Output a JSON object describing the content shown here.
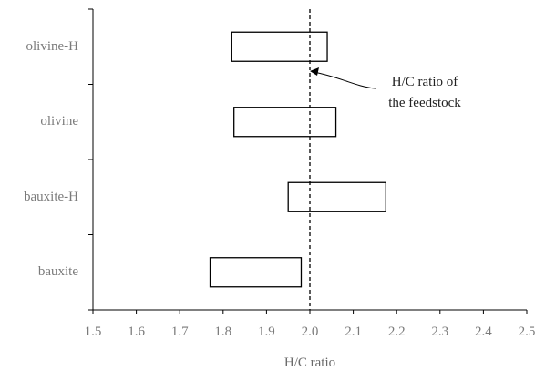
{
  "chart_data": {
    "type": "floating-bar",
    "xlabel": "H/C ratio",
    "xlim": [
      1.5,
      2.5
    ],
    "xticks": [
      "1.5",
      "1.6",
      "1.7",
      "1.8",
      "1.9",
      "2.0",
      "2.1",
      "2.2",
      "2.3",
      "2.4",
      "2.5"
    ],
    "categories": [
      "olivine-H",
      "olivine",
      "bauxite-H",
      "bauxite"
    ],
    "ranges": [
      [
        1.82,
        2.04
      ],
      [
        1.825,
        2.06
      ],
      [
        1.95,
        2.175
      ],
      [
        1.77,
        1.98
      ]
    ],
    "reference_line": {
      "x": 2.0,
      "style": "dashed"
    },
    "annotation": {
      "lines": [
        "H/C ratio of",
        "the feedstock"
      ]
    },
    "grid": false
  }
}
